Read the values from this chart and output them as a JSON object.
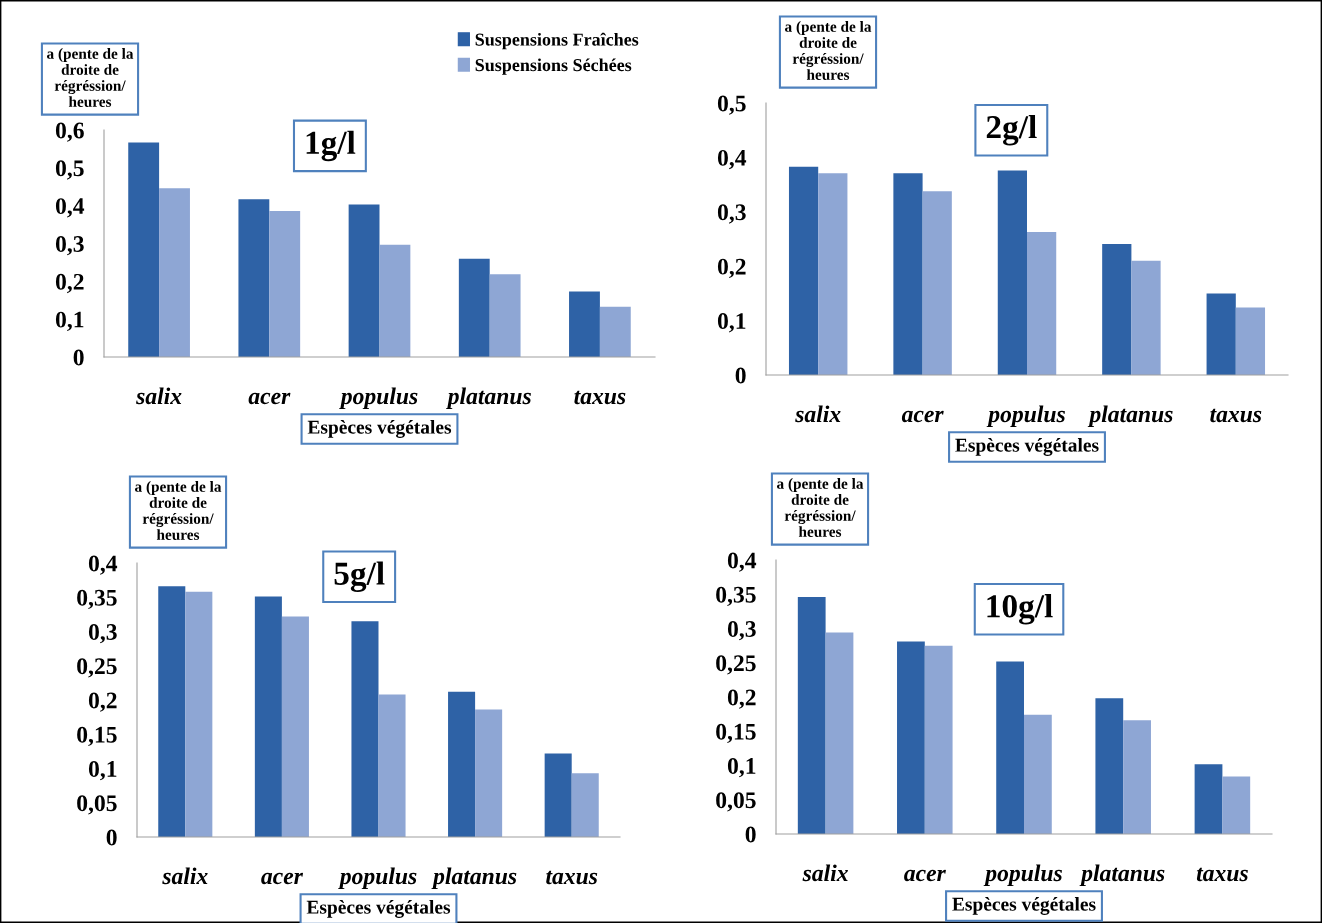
{
  "chart_data": [
    {
      "type": "bar",
      "title": "1g/l",
      "ylabel": "a (pente de la\ndroite de\nrégréssion/\nheures",
      "xlabel": "Espèces végétales",
      "categories": [
        "salix",
        "acer",
        "populus",
        "platanus",
        "taxus"
      ],
      "series": [
        {
          "name": "Suspensions Fraîches",
          "color": "#2e62a6",
          "values": [
            0.567,
            0.417,
            0.403,
            0.26,
            0.173
          ]
        },
        {
          "name": "Suspensions Séchées",
          "color": "#8ea6d4",
          "values": [
            0.446,
            0.386,
            0.297,
            0.219,
            0.133
          ]
        }
      ],
      "ylim": [
        0,
        0.6
      ],
      "yticks": [
        0,
        {
          "value": 0.1,
          "label": "0,1"
        },
        {
          "value": 0.2,
          "label": "0,2"
        },
        {
          "value": 0.3,
          "label": "0,3"
        },
        {
          "value": 0.4,
          "label": "0,4"
        },
        {
          "value": 0.5,
          "label": "0,5"
        },
        {
          "value": 0.6,
          "label": "0,6"
        }
      ],
      "legend": "top right"
    },
    {
      "type": "bar",
      "title": "2g/l",
      "ylabel": "a (pente de la\ndroite de\nrégréssion/\nheures",
      "xlabel": "Espèces végétales",
      "categories": [
        "salix",
        "acer",
        "populus",
        "platanus",
        "taxus"
      ],
      "series": [
        {
          "color": "#2e62a6",
          "values": [
            0.383,
            0.371,
            0.376,
            0.241,
            0.15
          ]
        },
        {
          "color": "#8ea6d4",
          "values": [
            0.371,
            0.338,
            0.263,
            0.21,
            0.124
          ]
        }
      ],
      "ylim": [
        0,
        0.5
      ],
      "yticks": [
        0,
        {
          "value": 0.1,
          "label": "0,1"
        },
        {
          "value": 0.2,
          "label": "0,2"
        },
        {
          "value": 0.3,
          "label": "0,3"
        },
        {
          "value": 0.4,
          "label": "0,4"
        },
        {
          "value": 0.5,
          "label": "0,5"
        }
      ]
    },
    {
      "type": "bar",
      "title": "5g/l",
      "ylabel": "a (pente de la\ndroite de\nrégréssion/\nheures",
      "xlabel": "Espèces végétales",
      "categories": [
        "salix",
        "acer",
        "populus",
        "platanus",
        "taxus"
      ],
      "series": [
        {
          "color": "#2e62a6",
          "values": [
            0.366,
            0.351,
            0.315,
            0.212,
            0.122
          ]
        },
        {
          "color": "#8ea6d4",
          "values": [
            0.358,
            0.322,
            0.208,
            0.186,
            0.093
          ]
        }
      ],
      "ylim": [
        0,
        0.4
      ],
      "yticks": [
        0,
        {
          "value": 0.05,
          "label": "0,05"
        },
        {
          "value": 0.1,
          "label": "0,1"
        },
        {
          "value": 0.15,
          "label": "0,15"
        },
        {
          "value": 0.2,
          "label": "0,2"
        },
        {
          "value": 0.25,
          "label": "0,25"
        },
        {
          "value": 0.3,
          "label": "0,3"
        },
        {
          "value": 0.35,
          "label": "0,35"
        },
        {
          "value": 0.4,
          "label": "0,4"
        }
      ]
    },
    {
      "type": "bar",
      "title": "10g/l",
      "ylabel": "a (pente de la\ndroite de\nrégréssion/\nheures",
      "xlabel": "Espèces végétales",
      "categories": [
        "salix",
        "acer",
        "populus",
        "platanus",
        "taxus"
      ],
      "series": [
        {
          "color": "#2e62a6",
          "values": [
            0.346,
            0.281,
            0.252,
            0.198,
            0.102
          ]
        },
        {
          "color": "#8ea6d4",
          "values": [
            0.294,
            0.275,
            0.174,
            0.166,
            0.084
          ]
        }
      ],
      "ylim": [
        0,
        0.4
      ],
      "yticks": [
        0,
        {
          "value": 0.05,
          "label": "0,05"
        },
        {
          "value": 0.1,
          "label": "0,1"
        },
        {
          "value": 0.15,
          "label": "0,15"
        },
        {
          "value": 0.2,
          "label": "0,2"
        },
        {
          "value": 0.25,
          "label": "0,25"
        },
        {
          "value": 0.3,
          "label": "0,3"
        },
        {
          "value": 0.35,
          "label": "0,35"
        },
        {
          "value": 0.4,
          "label": "0,4"
        }
      ]
    }
  ]
}
